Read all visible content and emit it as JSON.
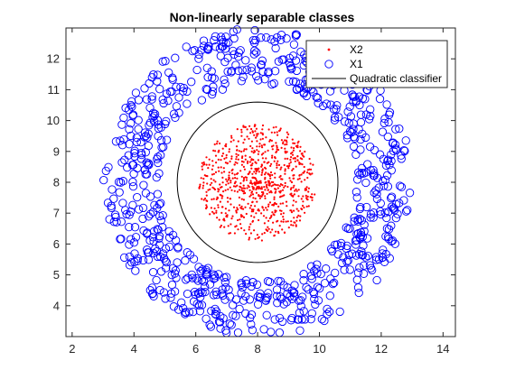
{
  "chart_data": {
    "type": "scatter",
    "title": "Non-linearly separable classes",
    "xlabel": "",
    "ylabel": "",
    "xlim": [
      1.8,
      14.4
    ],
    "ylim": [
      3.0,
      13.0
    ],
    "xticks": [
      2,
      4,
      6,
      8,
      10,
      12,
      14
    ],
    "yticks": [
      4,
      5,
      6,
      7,
      8,
      9,
      10,
      11,
      12
    ],
    "grid": false,
    "legend_position": "top-right",
    "series": [
      {
        "name": "X2",
        "marker": "dot",
        "color": "#ff0000",
        "shape": "filled disk",
        "center": [
          8.0,
          8.0
        ],
        "radius_range": [
          0.0,
          1.9
        ],
        "approx_points": 800
      },
      {
        "name": "X1",
        "marker": "circle",
        "color": "#0000ff",
        "shape": "annulus",
        "center": [
          8.0,
          8.0
        ],
        "radius_range": [
          3.2,
          5.0
        ],
        "approx_points": 800
      },
      {
        "name": "Quadratic classifier",
        "marker": "line",
        "color": "#000000",
        "shape": "circle",
        "center": [
          8.0,
          8.0
        ],
        "radius": 2.6
      }
    ]
  }
}
